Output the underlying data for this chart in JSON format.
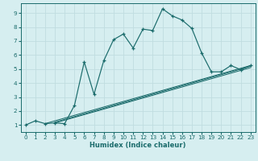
{
  "xlabel": "Humidex (Indice chaleur)",
  "background_color": "#d6eef0",
  "grid_color": "#c0dde0",
  "line_color": "#1a6b6b",
  "xlim": [
    -0.5,
    23.5
  ],
  "ylim": [
    0.5,
    9.7
  ],
  "xticks": [
    0,
    1,
    2,
    3,
    4,
    5,
    6,
    7,
    8,
    9,
    10,
    11,
    12,
    13,
    14,
    15,
    16,
    17,
    18,
    19,
    20,
    21,
    22,
    23
  ],
  "yticks": [
    1,
    2,
    3,
    4,
    5,
    6,
    7,
    8,
    9
  ],
  "line1_x": [
    0,
    1,
    2,
    3,
    4,
    5,
    6,
    7,
    8,
    9,
    10,
    11,
    12,
    13,
    14,
    15,
    16,
    17,
    18,
    19,
    20,
    21,
    22,
    23
  ],
  "line1_y": [
    1,
    1.3,
    1.1,
    1.15,
    1.1,
    2.4,
    5.5,
    3.2,
    5.6,
    7.1,
    7.5,
    6.5,
    7.85,
    7.75,
    9.3,
    8.8,
    8.5,
    7.9,
    6.15,
    4.8,
    4.8,
    5.25,
    4.95,
    5.25
  ],
  "line2_x": [
    2,
    23
  ],
  "line2_y": [
    1.1,
    5.25
  ],
  "line3_x": [
    3,
    23
  ],
  "line3_y": [
    1.15,
    5.1
  ],
  "line4_x": [
    3,
    23
  ],
  "line4_y": [
    1.2,
    5.2
  ]
}
